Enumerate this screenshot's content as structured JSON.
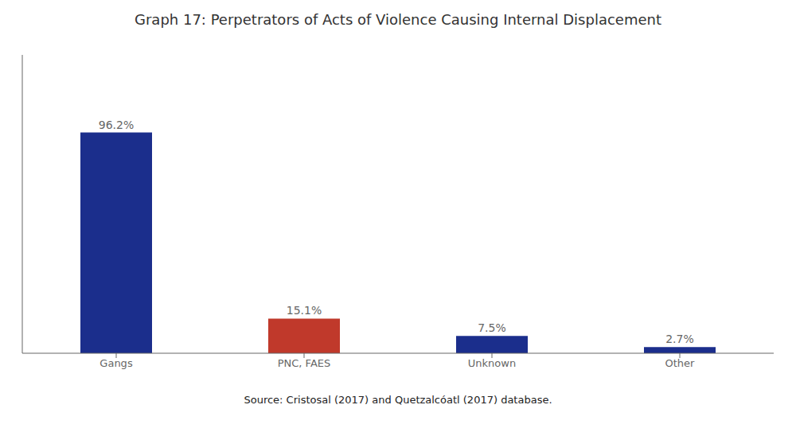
{
  "chart_data": {
    "type": "bar",
    "title": "Graph 17: Perpetrators of Acts of Violence Causing Internal Displacement",
    "source": "Source: Cristosal (2017) and Quetzalcóatl (2017) database.",
    "categories": [
      "Gangs",
      "PNC, FAES",
      "Unknown",
      "Other"
    ],
    "values": [
      96.2,
      15.1,
      7.5,
      2.7
    ],
    "value_labels": [
      "96.2%",
      "15.1%",
      "7.5%",
      "2.7%"
    ],
    "colors": [
      "#1B2E8C",
      "#C0392B",
      "#1B2E8C",
      "#1B2E8C"
    ],
    "ylim": [
      0,
      130
    ],
    "data_labels": true,
    "tick_labels": "x",
    "grid": false
  }
}
